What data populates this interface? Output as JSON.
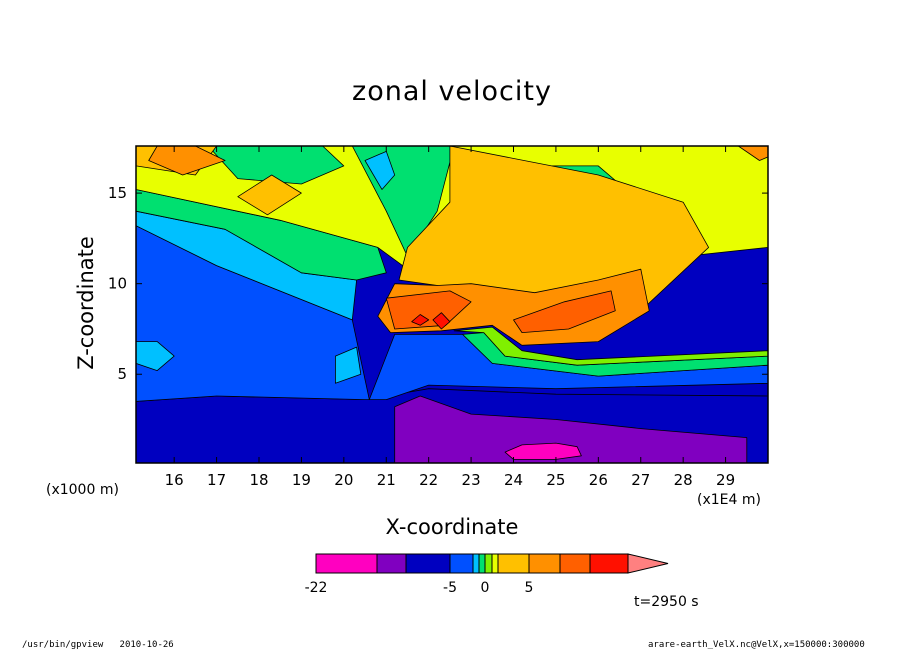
{
  "chart_data": {
    "type": "heatmap",
    "title": "zonal velocity",
    "xlabel": "X-coordinate",
    "ylabel": "Z-coordinate",
    "x_unit_label": "(x1000 m)",
    "x_multiplier_label": "(x1E4 m)",
    "xlim": [
      15.1,
      30.0
    ],
    "ylim": [
      0.1,
      17.6
    ],
    "x_ticks": [
      16,
      17,
      18,
      19,
      20,
      21,
      22,
      23,
      24,
      25,
      26,
      27,
      28,
      29
    ],
    "y_ticks": [
      5,
      10,
      15
    ],
    "time_label": "t=2950 s",
    "colorbar": {
      "labels": [
        {
          "text": "-22",
          "boundary": 0
        },
        {
          "text": "-5",
          "boundary": 3
        },
        {
          "text": "0",
          "boundary": 6
        },
        {
          "text": "5",
          "boundary": 9
        }
      ],
      "colors": [
        "#ff00c0",
        "#8000c0",
        "#0000c0",
        "#0050ff",
        "#00c0ff",
        "#00e070",
        "#80f000",
        "#e8ff00",
        "#ffc000",
        "#ff9000",
        "#ff6000",
        "#ff1000"
      ],
      "overflow_color": "#ff8080"
    },
    "regions": [
      {
        "level": 2,
        "points": [
          [
            15.1,
            0.1
          ],
          [
            30,
            0.1
          ],
          [
            30,
            3.8
          ],
          [
            25,
            3.9
          ],
          [
            22,
            4.2
          ],
          [
            20.5,
            3.6
          ],
          [
            17,
            3.8
          ],
          [
            15.1,
            3.5
          ]
        ]
      },
      {
        "level": 1,
        "points": [
          [
            21.2,
            0.1
          ],
          [
            29.5,
            0.1
          ],
          [
            29.5,
            1.5
          ],
          [
            27,
            2.0
          ],
          [
            25,
            2.5
          ],
          [
            23,
            2.8
          ],
          [
            21.8,
            3.8
          ],
          [
            21.2,
            3.2
          ]
        ]
      },
      {
        "level": 0,
        "points": [
          [
            23.8,
            0.7
          ],
          [
            24.2,
            1.1
          ],
          [
            25,
            1.2
          ],
          [
            25.5,
            1.0
          ],
          [
            25.6,
            0.5
          ],
          [
            25,
            0.3
          ],
          [
            24,
            0.3
          ]
        ]
      },
      {
        "level": 3,
        "points": [
          [
            15.1,
            3.5
          ],
          [
            17,
            3.8
          ],
          [
            20.5,
            3.6
          ],
          [
            21,
            3.6
          ],
          [
            22,
            4.4
          ],
          [
            25,
            4.2
          ],
          [
            30,
            4.5
          ],
          [
            30,
            5.5
          ],
          [
            26,
            4.9
          ],
          [
            23.5,
            5.6
          ],
          [
            22.8,
            7.2
          ],
          [
            21.2,
            7.2
          ],
          [
            20.6,
            3.6
          ],
          [
            20.2,
            8.0
          ],
          [
            17,
            11
          ],
          [
            15.1,
            13.2
          ]
        ]
      },
      {
        "level": 4,
        "points": [
          [
            15.1,
            5.6
          ],
          [
            15.6,
            5.2
          ],
          [
            16.0,
            6.0
          ],
          [
            15.6,
            6.8
          ],
          [
            15.1,
            6.8
          ]
        ]
      },
      {
        "level": 4,
        "points": [
          [
            15.1,
            13.2
          ],
          [
            17,
            11
          ],
          [
            20.2,
            8.0
          ],
          [
            20.3,
            10.2
          ],
          [
            19,
            10.6
          ],
          [
            17.2,
            13.0
          ],
          [
            15.1,
            14.0
          ]
        ]
      },
      {
        "level": 4,
        "points": [
          [
            19.8,
            4.5
          ],
          [
            20.4,
            5.0
          ],
          [
            20.3,
            6.5
          ],
          [
            19.8,
            6.0
          ]
        ]
      },
      {
        "level": 5,
        "points": [
          [
            15.1,
            14.0
          ],
          [
            17.2,
            13.0
          ],
          [
            19,
            10.6
          ],
          [
            20.3,
            10.2
          ],
          [
            21,
            10.6
          ],
          [
            20.8,
            12.0
          ],
          [
            18.5,
            13.5
          ],
          [
            15.1,
            15.2
          ]
        ]
      },
      {
        "level": 5,
        "points": [
          [
            22.8,
            7.2
          ],
          [
            23.5,
            5.6
          ],
          [
            26,
            4.9
          ],
          [
            30,
            5.5
          ],
          [
            30,
            6.0
          ],
          [
            25.5,
            5.5
          ],
          [
            23.8,
            6.0
          ],
          [
            23.3,
            7.3
          ]
        ]
      },
      {
        "level": 6,
        "points": [
          [
            22.6,
            7.4
          ],
          [
            23.3,
            7.3
          ],
          [
            23.8,
            6.0
          ],
          [
            25.5,
            5.5
          ],
          [
            30,
            6.0
          ],
          [
            30,
            6.3
          ],
          [
            25.5,
            5.8
          ],
          [
            24.2,
            6.3
          ],
          [
            23.5,
            7.6
          ]
        ]
      },
      {
        "level": 7,
        "points": [
          [
            15.1,
            15.2
          ],
          [
            18.5,
            13.5
          ],
          [
            20.8,
            12.0
          ],
          [
            21.5,
            10.8
          ],
          [
            23,
            10.5
          ],
          [
            26,
            10.7
          ],
          [
            28,
            11.5
          ],
          [
            30,
            12.0
          ],
          [
            30,
            17.6
          ],
          [
            15.1,
            17.6
          ]
        ]
      },
      {
        "level": 5,
        "points": [
          [
            20.2,
            17.6
          ],
          [
            21.0,
            14.0
          ],
          [
            21.5,
            11.5
          ],
          [
            22.2,
            14.0
          ],
          [
            22.6,
            17.6
          ]
        ]
      },
      {
        "level": 4,
        "points": [
          [
            20.5,
            16.8
          ],
          [
            20.9,
            15.2
          ],
          [
            21.2,
            16.0
          ],
          [
            21.0,
            17.3
          ]
        ]
      },
      {
        "level": 5,
        "points": [
          [
            23.2,
            14.5
          ],
          [
            24.5,
            13.0
          ],
          [
            26,
            13.2
          ],
          [
            27,
            14.5
          ],
          [
            26,
            16.5
          ],
          [
            24.5,
            16.5
          ]
        ]
      },
      {
        "level": 3,
        "points": [
          [
            23.5,
            14.0
          ],
          [
            24.6,
            13.4
          ],
          [
            25.5,
            14.0
          ],
          [
            25.0,
            15.2
          ],
          [
            24.0,
            15.0
          ]
        ]
      },
      {
        "level": 5,
        "points": [
          [
            16.8,
            17.6
          ],
          [
            17.5,
            15.8
          ],
          [
            19.0,
            15.5
          ],
          [
            20.0,
            16.5
          ],
          [
            19.5,
            17.6
          ]
        ]
      },
      {
        "level": 8,
        "points": [
          [
            22.5,
            17.6
          ],
          [
            26,
            16.0
          ],
          [
            28,
            14.5
          ],
          [
            28.6,
            12.0
          ],
          [
            27,
            8.5
          ],
          [
            25,
            7.0
          ],
          [
            23.7,
            8.5
          ],
          [
            22.5,
            9.8
          ],
          [
            21.3,
            10.2
          ],
          [
            21.5,
            12.0
          ],
          [
            22.5,
            14.5
          ]
        ]
      },
      {
        "level": 8,
        "points": [
          [
            15.1,
            17.6
          ],
          [
            15.1,
            16.5
          ],
          [
            16.5,
            16.0
          ],
          [
            17.0,
            17.6
          ]
        ]
      },
      {
        "level": 8,
        "points": [
          [
            17.5,
            14.8
          ],
          [
            18.2,
            13.8
          ],
          [
            19.0,
            15.0
          ],
          [
            18.3,
            16.0
          ]
        ]
      },
      {
        "level": 9,
        "points": [
          [
            15.4,
            16.8
          ],
          [
            16.2,
            16.0
          ],
          [
            17.2,
            16.8
          ],
          [
            16.5,
            17.6
          ],
          [
            15.6,
            17.6
          ]
        ]
      },
      {
        "level": 9,
        "points": [
          [
            29.3,
            17.6
          ],
          [
            29.8,
            16.8
          ],
          [
            30,
            17.0
          ],
          [
            30,
            17.6
          ]
        ]
      },
      {
        "level": 9,
        "points": [
          [
            21.2,
            10.0
          ],
          [
            22.2,
            9.9
          ],
          [
            23,
            10.0
          ],
          [
            24.5,
            9.5
          ],
          [
            26,
            10.2
          ],
          [
            27,
            10.8
          ],
          [
            27.2,
            8.5
          ],
          [
            26,
            6.8
          ],
          [
            24.2,
            6.6
          ],
          [
            23.5,
            7.7
          ],
          [
            22.3,
            7.4
          ],
          [
            21.1,
            7.3
          ],
          [
            20.8,
            8.2
          ]
        ]
      },
      {
        "level": 10,
        "points": [
          [
            24,
            8.0
          ],
          [
            25.2,
            9.0
          ],
          [
            26.3,
            9.6
          ],
          [
            26.4,
            8.5
          ],
          [
            25.3,
            7.5
          ],
          [
            24.2,
            7.3
          ]
        ]
      },
      {
        "level": 10,
        "points": [
          [
            21.0,
            9.2
          ],
          [
            22.5,
            9.6
          ],
          [
            23.0,
            9.0
          ],
          [
            22.4,
            7.7
          ],
          [
            21.2,
            7.5
          ]
        ]
      },
      {
        "level": 11,
        "points": [
          [
            21.6,
            7.9
          ],
          [
            21.8,
            8.3
          ],
          [
            22.0,
            8.0
          ],
          [
            21.8,
            7.7
          ]
        ]
      },
      {
        "level": 11,
        "points": [
          [
            22.1,
            8.0
          ],
          [
            22.3,
            8.4
          ],
          [
            22.5,
            7.9
          ],
          [
            22.3,
            7.5
          ]
        ]
      }
    ]
  }
}
